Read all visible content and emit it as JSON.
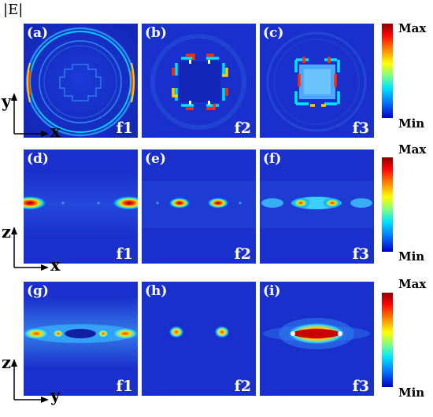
{
  "figure": {
    "title": "|E|"
  },
  "rows": [
    {
      "panels": [
        {
          "label": "(a)",
          "freq": "f1"
        },
        {
          "label": "(b)",
          "freq": "f2"
        },
        {
          "label": "(c)",
          "freq": "f3"
        }
      ],
      "colorbar": {
        "max": "Max",
        "min": "Min"
      },
      "axes": {
        "vertical": "y",
        "horizontal": "x"
      }
    },
    {
      "panels": [
        {
          "label": "(d)",
          "freq": "f1"
        },
        {
          "label": "(e)",
          "freq": "f2"
        },
        {
          "label": "(f)",
          "freq": "f3"
        }
      ],
      "colorbar": {
        "max": "Max",
        "min": "Min"
      },
      "axes": {
        "vertical": "z",
        "horizontal": "x"
      }
    },
    {
      "panels": [
        {
          "label": "(g)",
          "freq": "f1"
        },
        {
          "label": "(h)",
          "freq": "f2"
        },
        {
          "label": "(i)",
          "freq": "f3"
        }
      ],
      "colorbar": {
        "max": "Max",
        "min": "Min"
      },
      "axes": {
        "vertical": "z",
        "horizontal": "y"
      }
    }
  ]
}
